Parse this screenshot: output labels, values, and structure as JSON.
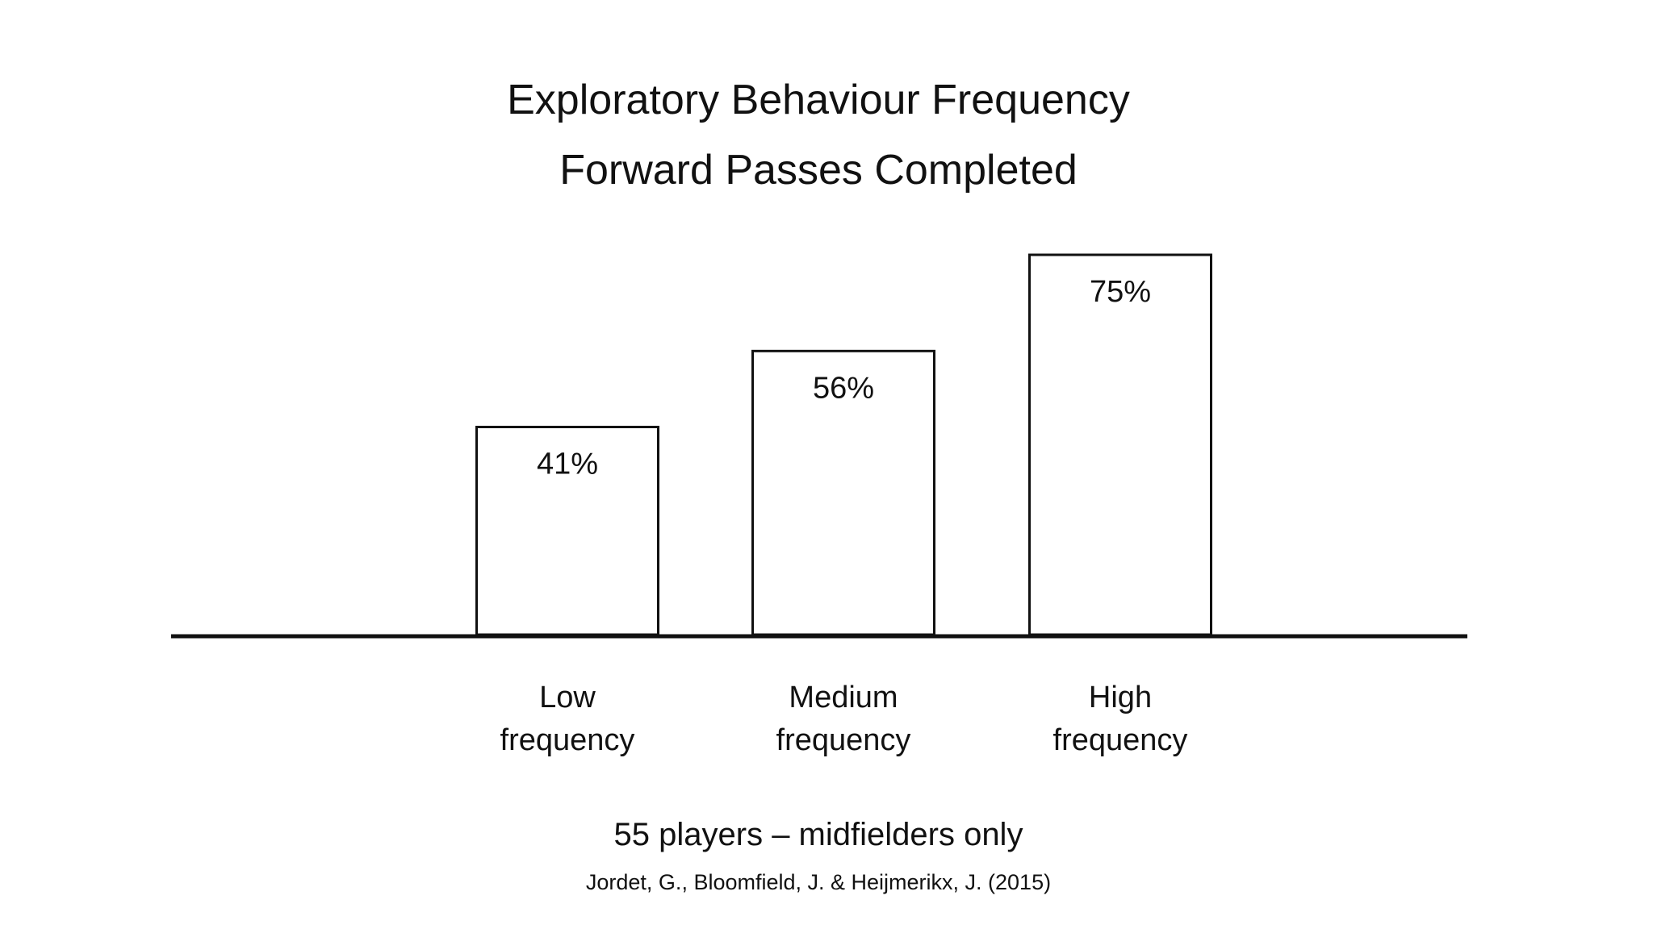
{
  "chart_data": {
    "type": "bar",
    "title": "Exploratory Behaviour Frequency",
    "subtitle": "Forward Passes Completed",
    "categories": [
      "Low frequency",
      "Medium frequency",
      "High frequency"
    ],
    "category_lines": [
      [
        "Low",
        "frequency"
      ],
      [
        "Medium",
        "frequency"
      ],
      [
        "High",
        "frequency"
      ]
    ],
    "values": [
      41,
      56,
      75
    ],
    "data_labels": [
      "41%",
      "56%",
      "75%"
    ],
    "unit": "%",
    "xlabel": "",
    "ylabel": "",
    "ylim": [
      0,
      100
    ],
    "grid": false,
    "legend": "none",
    "note": "55 players – midfielders only",
    "source": "Jordet, G., Bloomfield, J. & Heijmerikx, J. (2015)",
    "colors": {
      "bar_fill": "#ffffff",
      "bar_stroke": "#111111",
      "baseline": "#111111",
      "text": "#111111"
    }
  }
}
